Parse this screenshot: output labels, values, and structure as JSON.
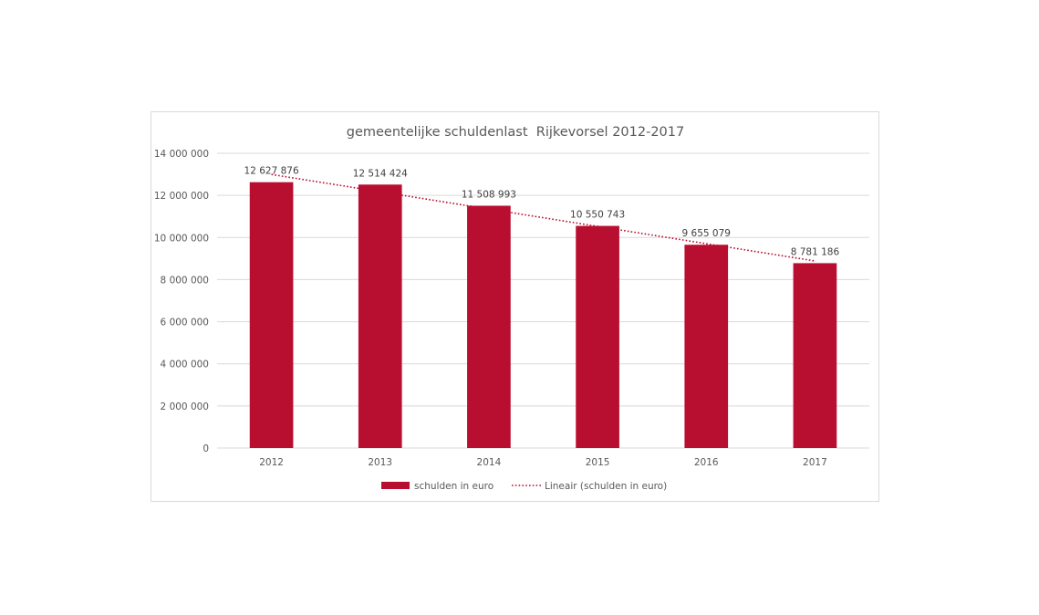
{
  "chart_data": {
    "type": "bar",
    "title": "gemeentelijke schuldenlast  Rijkevorsel 2012-2017",
    "categories": [
      "2012",
      "2013",
      "2014",
      "2015",
      "2016",
      "2017"
    ],
    "series": [
      {
        "name": "schulden in euro",
        "values": [
          12627876,
          12514424,
          11508993,
          10550743,
          9655079,
          8781186
        ],
        "data_labels": [
          "12 627 876",
          "12 514 424",
          "11 508 993",
          "10 550 743",
          "9 655 079",
          "8 781 186"
        ]
      }
    ],
    "trendline": {
      "name": "Lineair (schulden in euro)",
      "type": "linear"
    },
    "ylim": [
      0,
      14000000
    ],
    "y_ticks": [
      {
        "value": 0,
        "label": "0"
      },
      {
        "value": 2000000,
        "label": "2 000 000"
      },
      {
        "value": 4000000,
        "label": "4 000 000"
      },
      {
        "value": 6000000,
        "label": "6 000 000"
      },
      {
        "value": 8000000,
        "label": "8 000 000"
      },
      {
        "value": 10000000,
        "label": "10 000 000"
      },
      {
        "value": 12000000,
        "label": "12 000 000"
      },
      {
        "value": 14000000,
        "label": "14 000 000"
      }
    ],
    "grid": true,
    "legend_position": "bottom",
    "colors": {
      "bar": "#b80e30",
      "trendline": "#b80e30",
      "grid": "#d9d9d9",
      "text": "#595959",
      "title": "#595959"
    }
  }
}
